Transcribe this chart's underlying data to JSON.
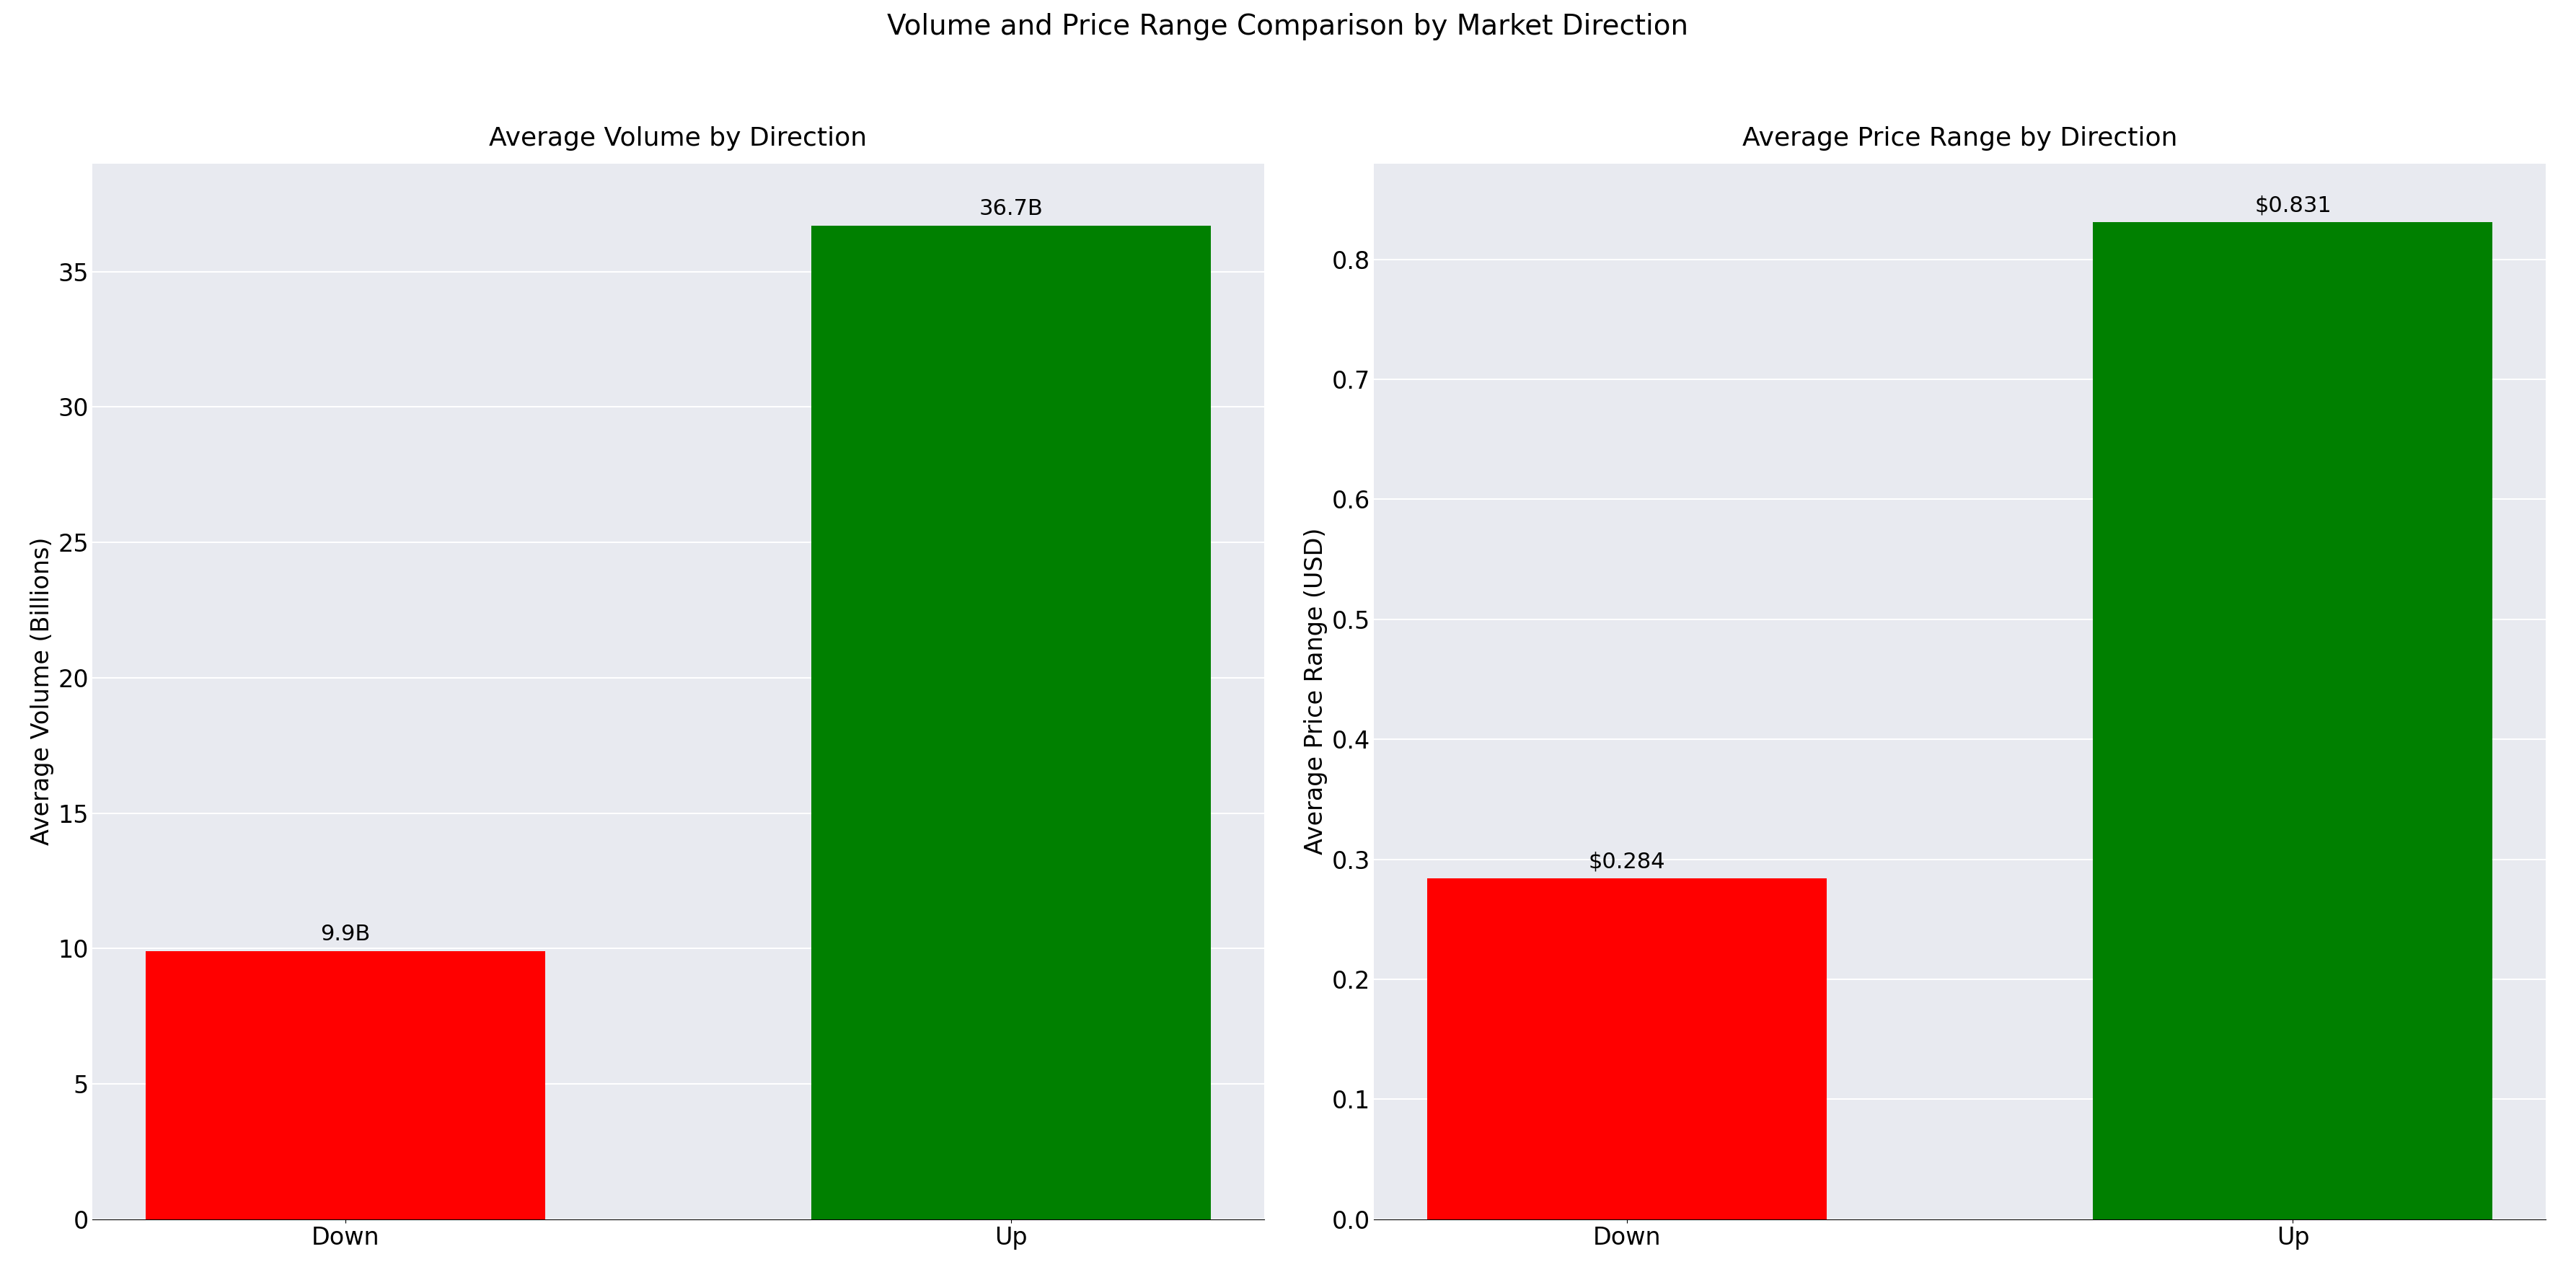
{
  "title": "Volume and Price Range Comparison by Market Direction",
  "left_title": "Average Volume by Direction",
  "right_title": "Average Price Range by Direction",
  "categories": [
    "Down",
    "Up"
  ],
  "volume_values": [
    9.9,
    36.7
  ],
  "volume_labels": [
    "9.9B",
    "36.7B"
  ],
  "price_values": [
    0.284,
    0.831
  ],
  "price_labels": [
    "$0.284",
    "$0.831"
  ],
  "colors": [
    "#ff0000",
    "#008000"
  ],
  "left_ylabel": "Average Volume (Billions)",
  "right_ylabel": "Average Price Range (USD)",
  "background_color": "#e8eaf0",
  "fig_background": "#ffffff",
  "title_fontsize": 28,
  "subtitle_fontsize": 26,
  "label_fontsize": 24,
  "annotation_fontsize": 22,
  "tick_fontsize": 24,
  "bar_width": 0.6,
  "vol_ylim": [
    0,
    39
  ],
  "vol_yticks": [
    0,
    5,
    10,
    15,
    20,
    25,
    30,
    35
  ],
  "price_ylim": [
    0,
    0.88
  ],
  "price_yticks": [
    0.0,
    0.1,
    0.2,
    0.3,
    0.4,
    0.5,
    0.6,
    0.7,
    0.8
  ]
}
